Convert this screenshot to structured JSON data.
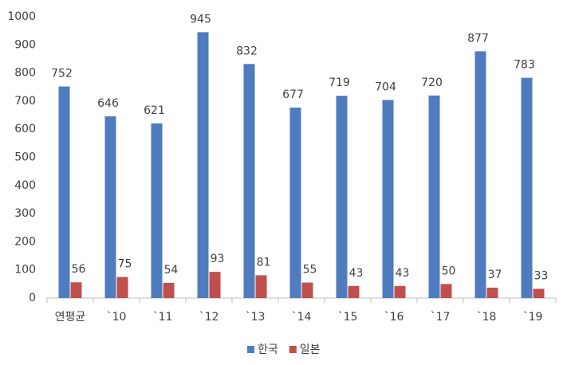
{
  "chart_data": {
    "type": "bar",
    "categories": [
      "연평균",
      "`10",
      "`11",
      "`12",
      "`13",
      "`14",
      "`15",
      "`16",
      "`17",
      "`18",
      "`19"
    ],
    "series": [
      {
        "name": "한국",
        "color": "#4f7bbf",
        "values": [
          752,
          646,
          621,
          945,
          832,
          677,
          719,
          704,
          720,
          877,
          783
        ]
      },
      {
        "name": "일본",
        "color": "#c0504d",
        "values": [
          56,
          75,
          54,
          93,
          81,
          55,
          43,
          43,
          50,
          37,
          33
        ]
      }
    ],
    "ylim": [
      0,
      1000
    ],
    "yticks": [
      0,
      100,
      200,
      300,
      400,
      500,
      600,
      700,
      800,
      900,
      1000
    ],
    "grid": false,
    "legend": "bottom",
    "data_labels": true
  }
}
